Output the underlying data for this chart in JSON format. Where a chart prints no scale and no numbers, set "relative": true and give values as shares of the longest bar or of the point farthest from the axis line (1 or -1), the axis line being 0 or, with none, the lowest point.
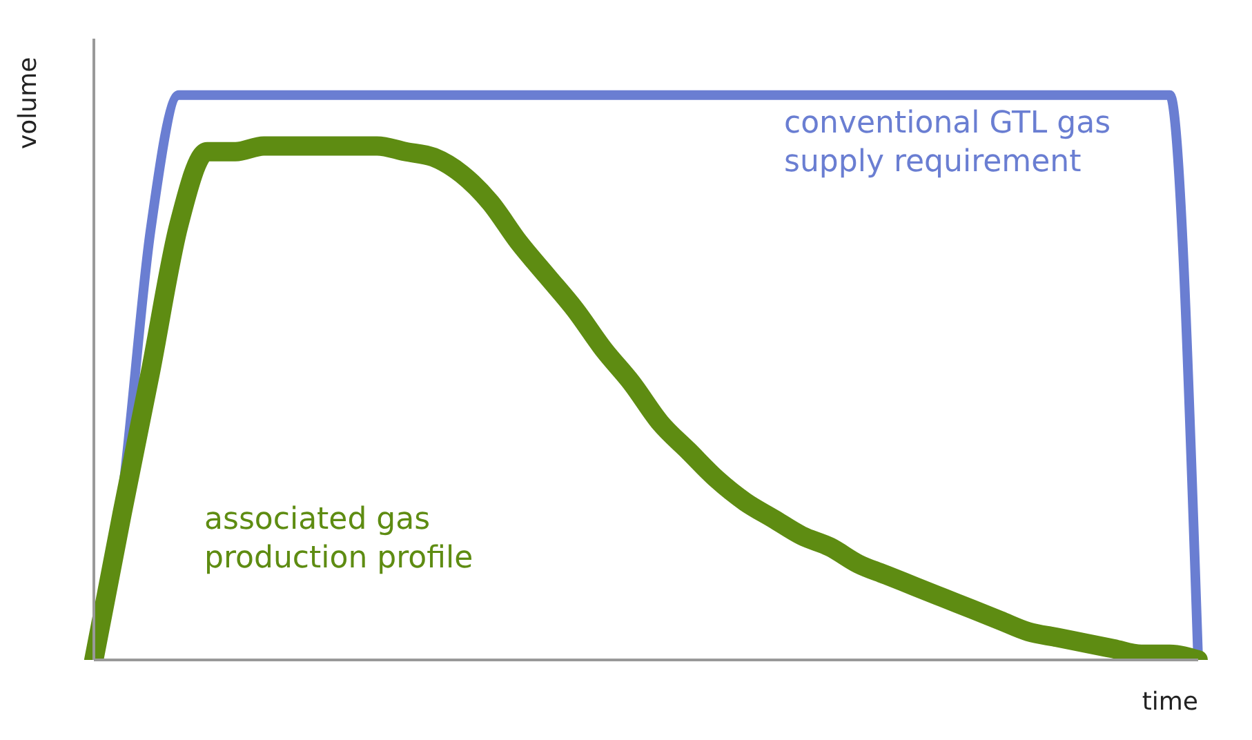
{
  "chart_data": {
    "type": "line",
    "relative": true,
    "xlabel": "time",
    "ylabel": "volume",
    "line_style": "solid",
    "categories": [
      null,
      null,
      null,
      null,
      null,
      null,
      null,
      null,
      null,
      null,
      null,
      null,
      null,
      null,
      null,
      null,
      null,
      null,
      null,
      null,
      null,
      null,
      null,
      null,
      null,
      null,
      null,
      null,
      null,
      null,
      null,
      null,
      null,
      null,
      null,
      null,
      null,
      null,
      null,
      null
    ],
    "series": [
      {
        "name": "conventional GTL gas supply requirement",
        "color": "#6a7ed2",
        "values": [
          0,
          0.29,
          0.76,
          1,
          1,
          1,
          1,
          1,
          1,
          1,
          1,
          1,
          1,
          1,
          1,
          1,
          1,
          1,
          1,
          1,
          1,
          1,
          1,
          1,
          1,
          1,
          1,
          1,
          1,
          1,
          1,
          1,
          1,
          1,
          1,
          1,
          1,
          1,
          1,
          0
        ]
      },
      {
        "name": "associated gas production profile",
        "color": "#5e8c12",
        "values": [
          0,
          0.26,
          0.51,
          0.77,
          0.9,
          0.9,
          0.91,
          0.91,
          0.91,
          0.91,
          0.91,
          0.9,
          0.89,
          0.86,
          0.81,
          0.74,
          0.68,
          0.62,
          0.55,
          0.49,
          0.42,
          0.37,
          0.32,
          0.28,
          0.25,
          0.22,
          0.2,
          0.17,
          0.15,
          0.13,
          0.11,
          0.09,
          0.07,
          0.05,
          0.04,
          0.03,
          0.02,
          0.01,
          0.01,
          0
        ]
      }
    ]
  }
}
